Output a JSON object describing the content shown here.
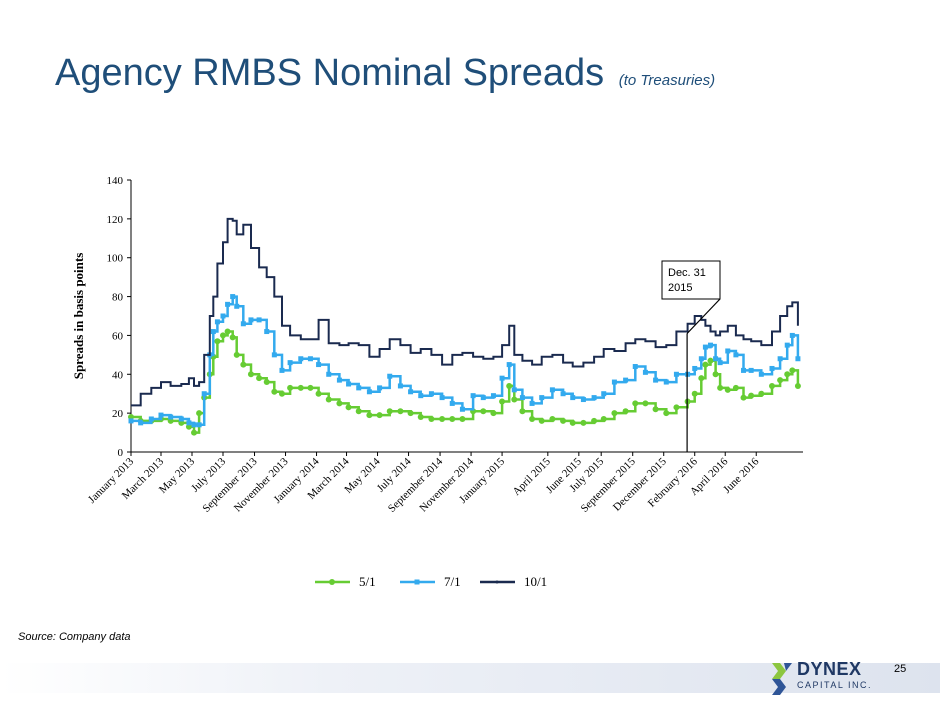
{
  "slide": {
    "title": "Agency RMBS Nominal Spreads",
    "subtitle": "(to Treasuries)",
    "source": "Source: Company data",
    "page_number": "25"
  },
  "logo": {
    "name": "DYNEX",
    "sub": "CAPITAL INC."
  },
  "colors": {
    "title": "#1f4e79",
    "s51": "#66cc33",
    "s71": "#33aaee",
    "s101": "#1a2a4f"
  },
  "chart_data": {
    "type": "line",
    "title": "",
    "xlabel": "",
    "ylabel": "Spreads in basis points",
    "ylim": [
      0,
      140
    ],
    "yticks": [
      0,
      20,
      40,
      60,
      80,
      100,
      120,
      140
    ],
    "xlim": [
      "2013-01-01",
      "2016-08-15"
    ],
    "grid": false,
    "legend_position": "bottom",
    "xtick_labels": [
      {
        "label": "January 2013",
        "date": "2013-01-01"
      },
      {
        "label": "March 2013",
        "date": "2013-03-01"
      },
      {
        "label": "May 2013",
        "date": "2013-05-01"
      },
      {
        "label": "July 2013",
        "date": "2013-07-01"
      },
      {
        "label": "September 2013",
        "date": "2013-09-01"
      },
      {
        "label": "November 2013",
        "date": "2013-11-01"
      },
      {
        "label": "January 2014",
        "date": "2014-01-01"
      },
      {
        "label": "March 2014",
        "date": "2014-03-01"
      },
      {
        "label": "May 2014",
        "date": "2014-05-01"
      },
      {
        "label": "July 2014",
        "date": "2014-07-01"
      },
      {
        "label": "September 2014",
        "date": "2014-09-01"
      },
      {
        "label": "November 2014",
        "date": "2014-11-01"
      },
      {
        "label": "January 2015",
        "date": "2015-01-01"
      },
      {
        "label": "April 2015",
        "date": "2015-04-01"
      },
      {
        "label": "June 2015",
        "date": "2015-06-01"
      },
      {
        "label": "July 2015",
        "date": "2015-07-15"
      },
      {
        "label": "September 2015",
        "date": "2015-09-15"
      },
      {
        "label": "December 2015",
        "date": "2015-11-15"
      },
      {
        "label": "February 2016",
        "date": "2016-01-15"
      },
      {
        "label": "April 2016",
        "date": "2016-03-15"
      },
      {
        "label": "June 2016",
        "date": "2016-05-15"
      }
    ],
    "annotation": {
      "text": [
        "Dec. 31",
        "2015"
      ],
      "date": "2015-12-31"
    },
    "series": [
      {
        "name": "5/1",
        "color": "#66cc33",
        "marker": "circle",
        "points": [
          [
            "2013-01-01",
            18
          ],
          [
            "2013-01-20",
            16
          ],
          [
            "2013-02-10",
            16
          ],
          [
            "2013-03-01",
            17
          ],
          [
            "2013-03-20",
            16
          ],
          [
            "2013-04-10",
            15
          ],
          [
            "2013-04-25",
            13
          ],
          [
            "2013-05-05",
            10
          ],
          [
            "2013-05-15",
            20
          ],
          [
            "2013-05-25",
            28
          ],
          [
            "2013-06-05",
            40
          ],
          [
            "2013-06-12",
            49
          ],
          [
            "2013-06-20",
            57
          ],
          [
            "2013-07-01",
            60
          ],
          [
            "2013-07-10",
            62
          ],
          [
            "2013-07-20",
            59
          ],
          [
            "2013-07-28",
            50
          ],
          [
            "2013-08-10",
            45
          ],
          [
            "2013-08-25",
            40
          ],
          [
            "2013-09-10",
            38
          ],
          [
            "2013-09-25",
            36
          ],
          [
            "2013-10-10",
            31
          ],
          [
            "2013-10-25",
            30
          ],
          [
            "2013-11-10",
            33
          ],
          [
            "2013-12-01",
            33
          ],
          [
            "2013-12-20",
            33
          ],
          [
            "2014-01-05",
            30
          ],
          [
            "2014-01-25",
            27
          ],
          [
            "2014-02-15",
            25
          ],
          [
            "2014-03-05",
            23
          ],
          [
            "2014-03-25",
            21
          ],
          [
            "2014-04-15",
            19
          ],
          [
            "2014-05-05",
            19
          ],
          [
            "2014-05-25",
            21
          ],
          [
            "2014-06-15",
            21
          ],
          [
            "2014-07-05",
            20
          ],
          [
            "2014-07-25",
            18
          ],
          [
            "2014-08-15",
            17
          ],
          [
            "2014-09-05",
            17
          ],
          [
            "2014-09-25",
            17
          ],
          [
            "2014-10-15",
            17
          ],
          [
            "2014-11-05",
            21
          ],
          [
            "2014-11-25",
            21
          ],
          [
            "2014-12-15",
            20
          ],
          [
            "2015-01-01",
            26
          ],
          [
            "2015-01-15",
            34
          ],
          [
            "2015-01-25",
            27
          ],
          [
            "2015-02-10",
            21
          ],
          [
            "2015-03-01",
            17
          ],
          [
            "2015-03-20",
            16
          ],
          [
            "2015-04-10",
            17
          ],
          [
            "2015-05-01",
            16
          ],
          [
            "2015-05-20",
            15
          ],
          [
            "2015-06-10",
            15
          ],
          [
            "2015-07-01",
            16
          ],
          [
            "2015-07-20",
            17
          ],
          [
            "2015-08-10",
            20
          ],
          [
            "2015-09-01",
            21
          ],
          [
            "2015-09-20",
            25
          ],
          [
            "2015-10-10",
            25
          ],
          [
            "2015-10-30",
            22
          ],
          [
            "2015-11-20",
            20
          ],
          [
            "2015-12-10",
            23
          ],
          [
            "2016-01-01",
            26
          ],
          [
            "2016-01-15",
            30
          ],
          [
            "2016-01-28",
            38
          ],
          [
            "2016-02-05",
            45
          ],
          [
            "2016-02-15",
            47
          ],
          [
            "2016-02-25",
            40
          ],
          [
            "2016-03-05",
            33
          ],
          [
            "2016-03-20",
            32
          ],
          [
            "2016-04-05",
            33
          ],
          [
            "2016-04-20",
            28
          ],
          [
            "2016-05-05",
            29
          ],
          [
            "2016-05-25",
            30
          ],
          [
            "2016-06-15",
            34
          ],
          [
            "2016-07-01",
            37
          ],
          [
            "2016-07-15",
            40
          ],
          [
            "2016-07-25",
            42
          ],
          [
            "2016-08-05",
            34
          ]
        ]
      },
      {
        "name": "7/1",
        "color": "#33aaee",
        "marker": "square",
        "points": [
          [
            "2013-01-01",
            16
          ],
          [
            "2013-01-20",
            15
          ],
          [
            "2013-02-10",
            17
          ],
          [
            "2013-03-01",
            19
          ],
          [
            "2013-03-20",
            18
          ],
          [
            "2013-04-10",
            17
          ],
          [
            "2013-04-25",
            15
          ],
          [
            "2013-05-05",
            14
          ],
          [
            "2013-05-15",
            14
          ],
          [
            "2013-05-25",
            30
          ],
          [
            "2013-06-05",
            50
          ],
          [
            "2013-06-12",
            62
          ],
          [
            "2013-06-20",
            67
          ],
          [
            "2013-07-01",
            70
          ],
          [
            "2013-07-10",
            76
          ],
          [
            "2013-07-20",
            80
          ],
          [
            "2013-07-28",
            75
          ],
          [
            "2013-08-10",
            66
          ],
          [
            "2013-08-25",
            68
          ],
          [
            "2013-09-10",
            68
          ],
          [
            "2013-09-25",
            62
          ],
          [
            "2013-10-10",
            50
          ],
          [
            "2013-10-25",
            42
          ],
          [
            "2013-11-10",
            46
          ],
          [
            "2013-12-01",
            48
          ],
          [
            "2013-12-20",
            48
          ],
          [
            "2014-01-05",
            45
          ],
          [
            "2014-01-25",
            40
          ],
          [
            "2014-02-15",
            37
          ],
          [
            "2014-03-05",
            35
          ],
          [
            "2014-03-25",
            33
          ],
          [
            "2014-04-15",
            31
          ],
          [
            "2014-05-05",
            33
          ],
          [
            "2014-05-25",
            39
          ],
          [
            "2014-06-15",
            34
          ],
          [
            "2014-07-05",
            31
          ],
          [
            "2014-07-25",
            29
          ],
          [
            "2014-08-15",
            30
          ],
          [
            "2014-09-05",
            28
          ],
          [
            "2014-09-25",
            25
          ],
          [
            "2014-10-15",
            22
          ],
          [
            "2014-11-05",
            29
          ],
          [
            "2014-11-25",
            28
          ],
          [
            "2014-12-15",
            29
          ],
          [
            "2015-01-01",
            38
          ],
          [
            "2015-01-15",
            45
          ],
          [
            "2015-01-25",
            32
          ],
          [
            "2015-02-10",
            28
          ],
          [
            "2015-03-01",
            25
          ],
          [
            "2015-03-20",
            28
          ],
          [
            "2015-04-10",
            32
          ],
          [
            "2015-05-01",
            30
          ],
          [
            "2015-05-20",
            28
          ],
          [
            "2015-06-10",
            27
          ],
          [
            "2015-07-01",
            28
          ],
          [
            "2015-07-20",
            30
          ],
          [
            "2015-08-10",
            36
          ],
          [
            "2015-09-01",
            37
          ],
          [
            "2015-09-20",
            44
          ],
          [
            "2015-10-10",
            41
          ],
          [
            "2015-10-30",
            37
          ],
          [
            "2015-11-20",
            36
          ],
          [
            "2015-12-10",
            40
          ],
          [
            "2016-01-01",
            40
          ],
          [
            "2016-01-15",
            43
          ],
          [
            "2016-01-28",
            48
          ],
          [
            "2016-02-05",
            54
          ],
          [
            "2016-02-15",
            55
          ],
          [
            "2016-02-25",
            48
          ],
          [
            "2016-03-05",
            46
          ],
          [
            "2016-03-20",
            52
          ],
          [
            "2016-04-05",
            50
          ],
          [
            "2016-04-20",
            42
          ],
          [
            "2016-05-05",
            42
          ],
          [
            "2016-05-25",
            40
          ],
          [
            "2016-06-15",
            43
          ],
          [
            "2016-07-01",
            48
          ],
          [
            "2016-07-15",
            55
          ],
          [
            "2016-07-25",
            60
          ],
          [
            "2016-08-05",
            48
          ]
        ]
      },
      {
        "name": "10/1",
        "color": "#1a2a4f",
        "marker": "none",
        "points": [
          [
            "2013-01-01",
            24
          ],
          [
            "2013-01-20",
            30
          ],
          [
            "2013-02-10",
            33
          ],
          [
            "2013-03-01",
            36
          ],
          [
            "2013-03-20",
            34
          ],
          [
            "2013-04-10",
            35
          ],
          [
            "2013-04-25",
            38
          ],
          [
            "2013-05-05",
            34
          ],
          [
            "2013-05-15",
            36
          ],
          [
            "2013-05-25",
            50
          ],
          [
            "2013-06-05",
            70
          ],
          [
            "2013-06-12",
            80
          ],
          [
            "2013-06-20",
            97
          ],
          [
            "2013-07-01",
            108
          ],
          [
            "2013-07-10",
            120
          ],
          [
            "2013-07-20",
            119
          ],
          [
            "2013-07-28",
            112
          ],
          [
            "2013-08-10",
            117
          ],
          [
            "2013-08-25",
            105
          ],
          [
            "2013-09-10",
            95
          ],
          [
            "2013-09-25",
            90
          ],
          [
            "2013-10-10",
            80
          ],
          [
            "2013-10-25",
            65
          ],
          [
            "2013-11-10",
            60
          ],
          [
            "2013-12-01",
            58
          ],
          [
            "2013-12-20",
            58
          ],
          [
            "2014-01-05",
            68
          ],
          [
            "2014-01-25",
            56
          ],
          [
            "2014-02-15",
            55
          ],
          [
            "2014-03-05",
            56
          ],
          [
            "2014-03-25",
            55
          ],
          [
            "2014-04-15",
            49
          ],
          [
            "2014-05-05",
            53
          ],
          [
            "2014-05-25",
            58
          ],
          [
            "2014-06-15",
            55
          ],
          [
            "2014-07-05",
            51
          ],
          [
            "2014-07-25",
            53
          ],
          [
            "2014-08-15",
            50
          ],
          [
            "2014-09-05",
            45
          ],
          [
            "2014-09-25",
            50
          ],
          [
            "2014-10-15",
            51
          ],
          [
            "2014-11-05",
            49
          ],
          [
            "2014-11-25",
            48
          ],
          [
            "2014-12-15",
            49
          ],
          [
            "2015-01-01",
            55
          ],
          [
            "2015-01-15",
            65
          ],
          [
            "2015-01-25",
            50
          ],
          [
            "2015-02-10",
            47
          ],
          [
            "2015-03-01",
            45
          ],
          [
            "2015-03-20",
            49
          ],
          [
            "2015-04-10",
            50
          ],
          [
            "2015-05-01",
            46
          ],
          [
            "2015-05-20",
            44
          ],
          [
            "2015-06-10",
            46
          ],
          [
            "2015-07-01",
            49
          ],
          [
            "2015-07-20",
            53
          ],
          [
            "2015-08-10",
            52
          ],
          [
            "2015-09-01",
            56
          ],
          [
            "2015-09-20",
            58
          ],
          [
            "2015-10-10",
            57
          ],
          [
            "2015-10-30",
            54
          ],
          [
            "2015-11-20",
            55
          ],
          [
            "2015-12-10",
            62
          ],
          [
            "2016-01-01",
            66
          ],
          [
            "2016-01-15",
            70
          ],
          [
            "2016-01-28",
            68
          ],
          [
            "2016-02-05",
            65
          ],
          [
            "2016-02-15",
            62
          ],
          [
            "2016-02-25",
            60
          ],
          [
            "2016-03-05",
            62
          ],
          [
            "2016-03-20",
            65
          ],
          [
            "2016-04-05",
            60
          ],
          [
            "2016-04-20",
            58
          ],
          [
            "2016-05-05",
            57
          ],
          [
            "2016-05-25",
            55
          ],
          [
            "2016-06-15",
            62
          ],
          [
            "2016-07-01",
            70
          ],
          [
            "2016-07-15",
            75
          ],
          [
            "2016-07-25",
            77
          ],
          [
            "2016-08-05",
            65
          ]
        ]
      }
    ]
  }
}
